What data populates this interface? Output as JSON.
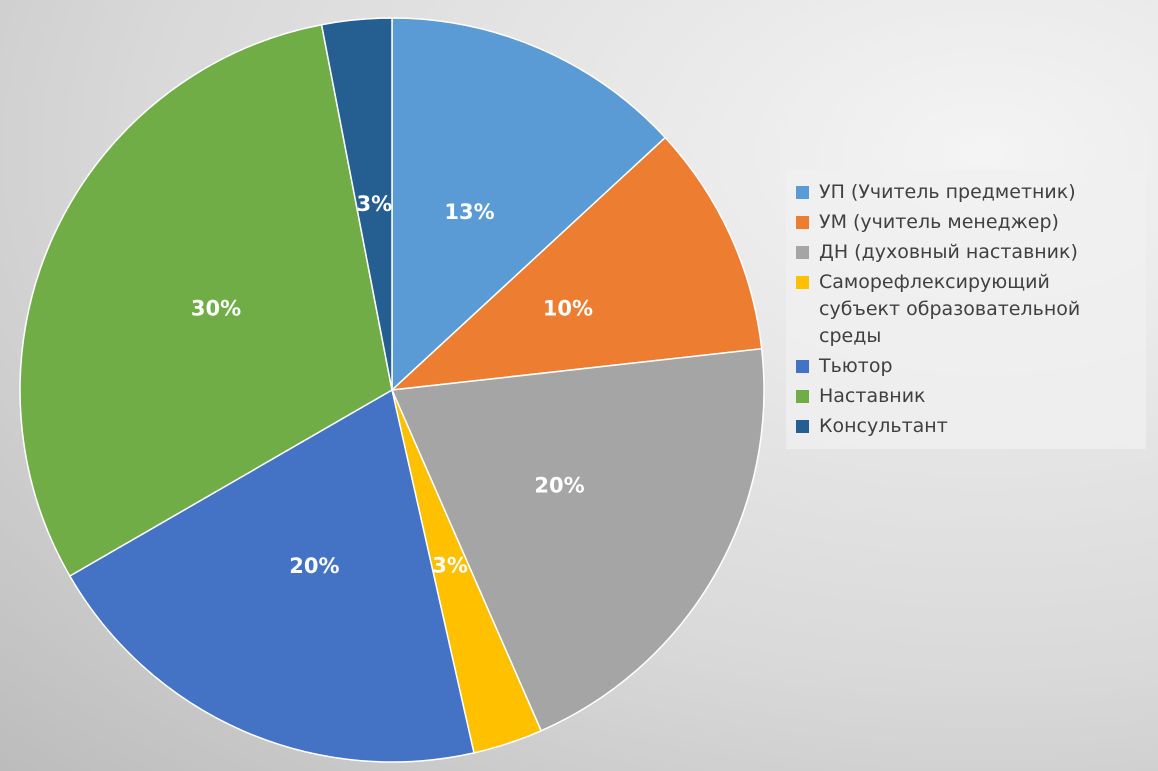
{
  "chart_data": {
    "type": "pie",
    "categories": [
      "УП (Учитель предметник)",
      "УМ (учитель менеджер)",
      "ДН (духовный наставник)",
      "Саморефлексирующий субъект образовательной среды",
      "Тьютор",
      "Наставник",
      "Консультант"
    ],
    "values": [
      13,
      10,
      20,
      3,
      20,
      30,
      3
    ],
    "value_labels": [
      "13%",
      "10%",
      "20%",
      "3%",
      "20%",
      "30%",
      "3%"
    ],
    "colors": [
      "#5b9bd5",
      "#ed7d31",
      "#a5a5a5",
      "#ffc000",
      "#4472c4",
      "#70ad47",
      "#255e91"
    ],
    "legend": "right"
  }
}
